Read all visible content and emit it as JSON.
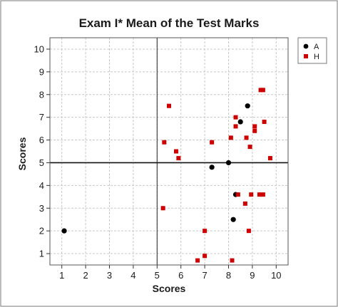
{
  "chart_data": {
    "type": "scatter",
    "title": "Exam I* Mean of the Test Marks",
    "xlabel": "Scores",
    "ylabel": "Scores",
    "xlim": [
      0.5,
      10.5
    ],
    "ylim": [
      0.5,
      10.5
    ],
    "xticks": [
      1,
      2,
      3,
      4,
      5,
      6,
      7,
      8,
      9,
      10
    ],
    "yticks": [
      1,
      2,
      3,
      4,
      5,
      6,
      7,
      8,
      9,
      10
    ],
    "grid": true,
    "reference_lines": {
      "x": 5,
      "y": 5
    },
    "legend_position": "top-right",
    "series": [
      {
        "name": "A",
        "marker": "circle",
        "color": "#000000",
        "points": [
          [
            1.1,
            2.0
          ],
          [
            7.3,
            4.8
          ],
          [
            8.0,
            5.0
          ],
          [
            8.3,
            3.6
          ],
          [
            8.2,
            2.5
          ],
          [
            8.5,
            6.8
          ],
          [
            8.8,
            7.5
          ]
        ]
      },
      {
        "name": "H",
        "marker": "square",
        "color": "#cc0000",
        "points": [
          [
            5.3,
            5.9
          ],
          [
            5.5,
            7.5
          ],
          [
            5.8,
            5.5
          ],
          [
            5.9,
            5.2
          ],
          [
            5.25,
            3.0
          ],
          [
            6.7,
            0.7
          ],
          [
            7.0,
            2.0
          ],
          [
            7.0,
            0.9
          ],
          [
            7.3,
            5.9
          ],
          [
            8.1,
            6.1
          ],
          [
            8.3,
            6.6
          ],
          [
            8.3,
            7.0
          ],
          [
            8.15,
            0.7
          ],
          [
            8.4,
            3.6
          ],
          [
            8.7,
            3.2
          ],
          [
            8.75,
            6.1
          ],
          [
            8.9,
            5.7
          ],
          [
            8.85,
            2.0
          ],
          [
            8.95,
            3.6
          ],
          [
            9.1,
            6.4
          ],
          [
            9.1,
            6.6
          ],
          [
            9.3,
            3.6
          ],
          [
            9.35,
            8.2
          ],
          [
            9.45,
            8.2
          ],
          [
            9.45,
            3.6
          ],
          [
            9.5,
            6.8
          ],
          [
            9.75,
            5.2
          ]
        ]
      }
    ]
  }
}
